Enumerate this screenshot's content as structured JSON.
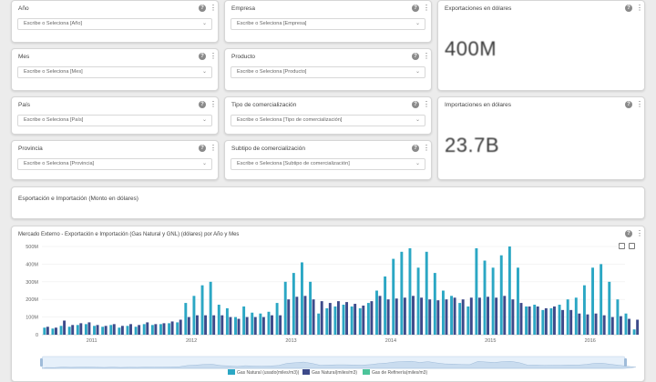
{
  "filters": [
    {
      "title": "Año",
      "placeholder": "Escribe o Seleciona [Año]"
    },
    {
      "title": "Empresa",
      "placeholder": "Escribe o Seleciona [Empresa]"
    },
    {
      "title": "Mes",
      "placeholder": "Escribe o Seleciona [Mes]"
    },
    {
      "title": "Producto",
      "placeholder": "Escribe o Seleciona [Producto]"
    },
    {
      "title": "País",
      "placeholder": "Escribe o Seleciona [País]"
    },
    {
      "title": "Tipo de comercialización",
      "placeholder": "Escribe o Seleciona [Tipo de comercialización]"
    },
    {
      "title": "Provincia",
      "placeholder": "Escribe o Seleciona [Provincia]"
    },
    {
      "title": "Subtipo de comercialización",
      "placeholder": "Escribe o Seleciona [Subtipo de comercialización]"
    }
  ],
  "kpis": [
    {
      "title": "Exportaciones en dólares",
      "value": "400M"
    },
    {
      "title": "Importaciones en dólares",
      "value": "23.7B"
    }
  ],
  "section_title": "Esportación e Importación (Monto en dólares)",
  "chart_panel": {
    "title": "Mercado Externo - Exportación e Importación (Gas Natural y GNL) (dólares) por Año y Mes"
  },
  "icons": {
    "info": "info-icon",
    "menu": "kebab-menu-icon",
    "dropdown": "chevron-down-icon"
  },
  "colors": {
    "series1": "#2ba7c4",
    "series2": "#3d4a8a",
    "series3": "#4cc49a"
  },
  "chart_data": {
    "type": "bar",
    "ylim": [
      0,
      500000000
    ],
    "y_ticks": [
      "500M",
      "400M",
      "300M",
      "200M",
      "100M",
      "0"
    ],
    "x_ticks": [
      "2011",
      "2012",
      "2013",
      "2014",
      "2015",
      "2016"
    ],
    "x_tick_positions": [
      0.5,
      1.5,
      2.5,
      3.5,
      4.5,
      5.5
    ],
    "x_range": [
      0,
      5.85
    ],
    "months_per_year": 12,
    "series": [
      {
        "name": "Gas Natural (usado(miles/m3))",
        "color": "#2ba7c4",
        "values": [
          40,
          35,
          50,
          45,
          55,
          60,
          50,
          45,
          55,
          40,
          50,
          45,
          60,
          55,
          60,
          65,
          70,
          180,
          220,
          280,
          300,
          170,
          150,
          100,
          160,
          125,
          120,
          130,
          180,
          300,
          350,
          410,
          300,
          120,
          150,
          160,
          170,
          160,
          150,
          180,
          250,
          330,
          430,
          470,
          490,
          380,
          470,
          350,
          250,
          220,
          180,
          160,
          490,
          420,
          380,
          450,
          500,
          380,
          160,
          170,
          140,
          150,
          170,
          200,
          210,
          280,
          380,
          400,
          300,
          200,
          120,
          30
        ]
      },
      {
        "name": "Gas Natural(miles/m3)",
        "color": "#3d4a8a",
        "values": [
          45,
          40,
          80,
          55,
          65,
          70,
          55,
          50,
          60,
          50,
          60,
          55,
          70,
          60,
          65,
          75,
          85,
          100,
          110,
          110,
          110,
          110,
          100,
          90,
          100,
          100,
          100,
          110,
          110,
          200,
          215,
          220,
          200,
          190,
          180,
          190,
          185,
          175,
          165,
          190,
          220,
          200,
          205,
          210,
          220,
          210,
          200,
          195,
          200,
          210,
          200,
          210,
          210,
          215,
          210,
          220,
          200,
          180,
          160,
          160,
          150,
          160,
          140,
          140,
          120,
          115,
          120,
          110,
          100,
          105,
          90,
          85
        ]
      },
      {
        "name": "Gas de Refinería(miles/m3)",
        "color": "#4cc49a",
        "values": [
          0,
          0,
          0,
          0,
          0,
          0,
          0,
          0,
          0,
          0,
          0,
          0,
          0,
          0,
          0,
          0,
          0,
          0,
          0,
          0,
          0,
          0,
          0,
          0,
          0,
          0,
          0,
          0,
          0,
          0,
          0,
          0,
          0,
          0,
          0,
          0,
          0,
          0,
          0,
          0,
          0,
          0,
          0,
          0,
          0,
          0,
          0,
          0,
          0,
          0,
          0,
          0,
          0,
          0,
          0,
          0,
          0,
          0,
          0,
          0,
          0,
          0,
          0,
          0,
          0,
          0,
          0,
          0,
          0,
          0,
          0,
          0
        ]
      }
    ],
    "value_unit": "millions",
    "legend_position": "bottom-center",
    "grid": true
  }
}
